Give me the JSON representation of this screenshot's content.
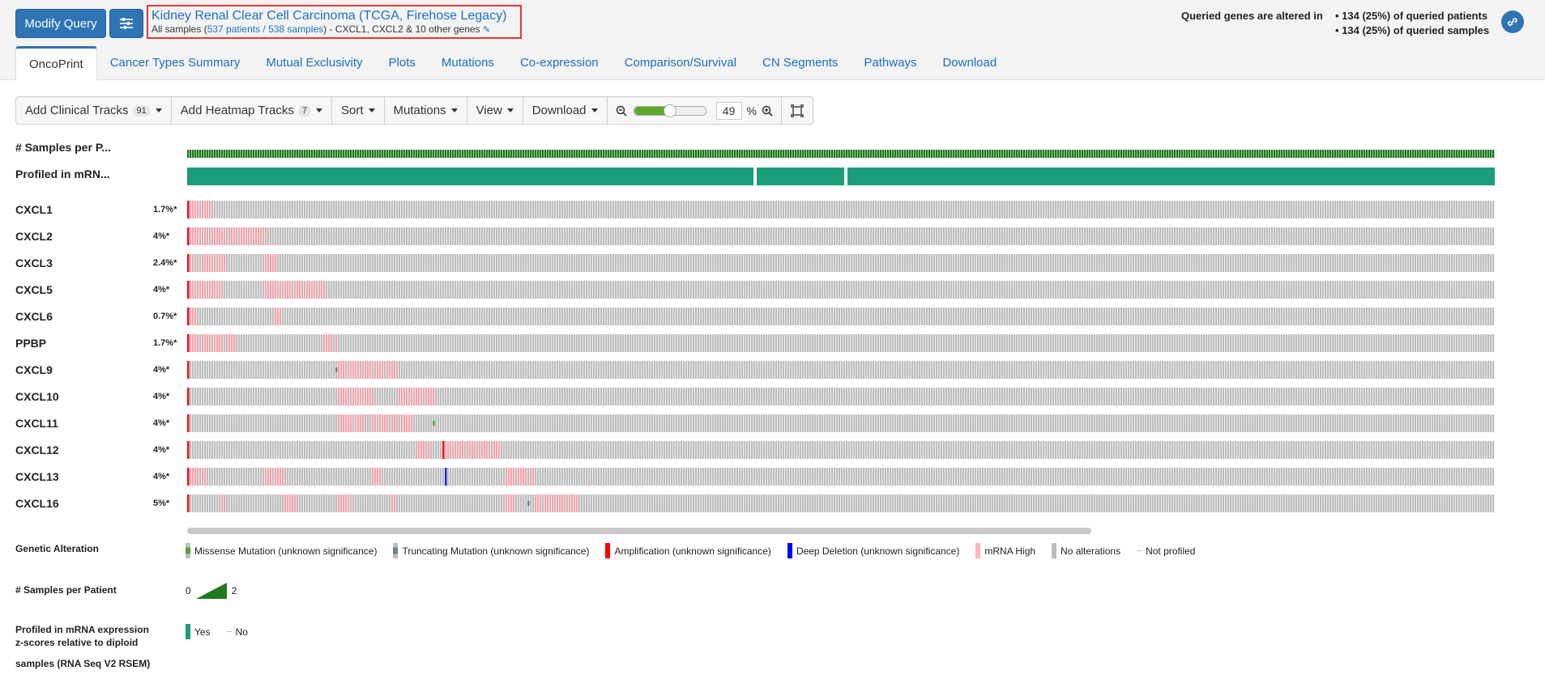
{
  "header": {
    "modify_query_label": "Modify Query",
    "study_title": "Kidney Renal Clear Cell Carcinoma (TCGA, Firehose Legacy)",
    "study_sub_prefix": "All samples (",
    "patients_link": "537 patients / 538 samples",
    "study_sub_suffix": ")  - CXCL1, CXCL2 & 10 other genes",
    "altered_label": "Queried genes are altered in",
    "altered_patients": "• 134 (25%) of queried patients",
    "altered_samples": "• 134 (25%) of queried samples"
  },
  "tabs": [
    "OncoPrint",
    "Cancer Types Summary",
    "Mutual Exclusivity",
    "Plots",
    "Mutations",
    "Co-expression",
    "Comparison/Survival",
    "CN Segments",
    "Pathways",
    "Download"
  ],
  "active_tab": "OncoPrint",
  "toolbar": {
    "add_clinical": "Add Clinical Tracks",
    "add_clinical_count": "91",
    "add_heatmap": "Add Heatmap Tracks",
    "add_heatmap_count": "7",
    "sort": "Sort",
    "mutations": "Mutations",
    "view": "View",
    "download": "Download",
    "zoom_value": "49",
    "zoom_pct_sign": "%",
    "zoom_level": 0.49
  },
  "clinical_tracks": [
    "# Samples per P...",
    "Profiled in mRN..."
  ],
  "genes": [
    {
      "name": "CXCL1",
      "pct": "1.7%*"
    },
    {
      "name": "CXCL2",
      "pct": "4%*"
    },
    {
      "name": "CXCL3",
      "pct": "2.4%*"
    },
    {
      "name": "CXCL5",
      "pct": "4%*"
    },
    {
      "name": "CXCL6",
      "pct": "0.7%*"
    },
    {
      "name": "PPBP",
      "pct": "1.7%*"
    },
    {
      "name": "CXCL9",
      "pct": "4%*"
    },
    {
      "name": "CXCL10",
      "pct": "4%*"
    },
    {
      "name": "CXCL11",
      "pct": "4%*"
    },
    {
      "name": "CXCL12",
      "pct": "4%*"
    },
    {
      "name": "CXCL13",
      "pct": "4%*"
    },
    {
      "name": "CXCL16",
      "pct": "5%*"
    }
  ],
  "legend": {
    "genetic_alteration_title": "Genetic Alteration",
    "items": [
      {
        "label": "Missense Mutation (unknown significance)",
        "color": "#5e9e35"
      },
      {
        "label": "Truncating Mutation (unknown significance)",
        "color": "#708090"
      },
      {
        "label": "Amplification (unknown significance)",
        "color": "#ff0000"
      },
      {
        "label": "Deep Deletion (unknown significance)",
        "color": "#0000ff"
      },
      {
        "label": "mRNA High",
        "color": "#ffb6c1"
      },
      {
        "label": "No alterations",
        "color": "#bebebe"
      },
      {
        "label": "Not profiled",
        "color": "#ffffff"
      }
    ],
    "samples_title": "# Samples per Patient",
    "samples_min": "0",
    "samples_max": "2",
    "profiled_title_lines": [
      "Profiled in mRNA expression",
      "z-scores relative to diploid",
      "samples (RNA Seq V2 RSEM)"
    ],
    "profiled_yes": "Yes",
    "profiled_no": "No"
  },
  "colors": {
    "accent": "#2e74b5",
    "no_alteration": "#bebebe",
    "mrna_high": "#f3a5ad",
    "amplification": "#e8141c",
    "deep_deletion": "#2020e8",
    "missense": "#5e9e35",
    "truncating": "#708090",
    "samples_per_patient": "#1f7a1f",
    "profiled": "#1b9d7a"
  }
}
